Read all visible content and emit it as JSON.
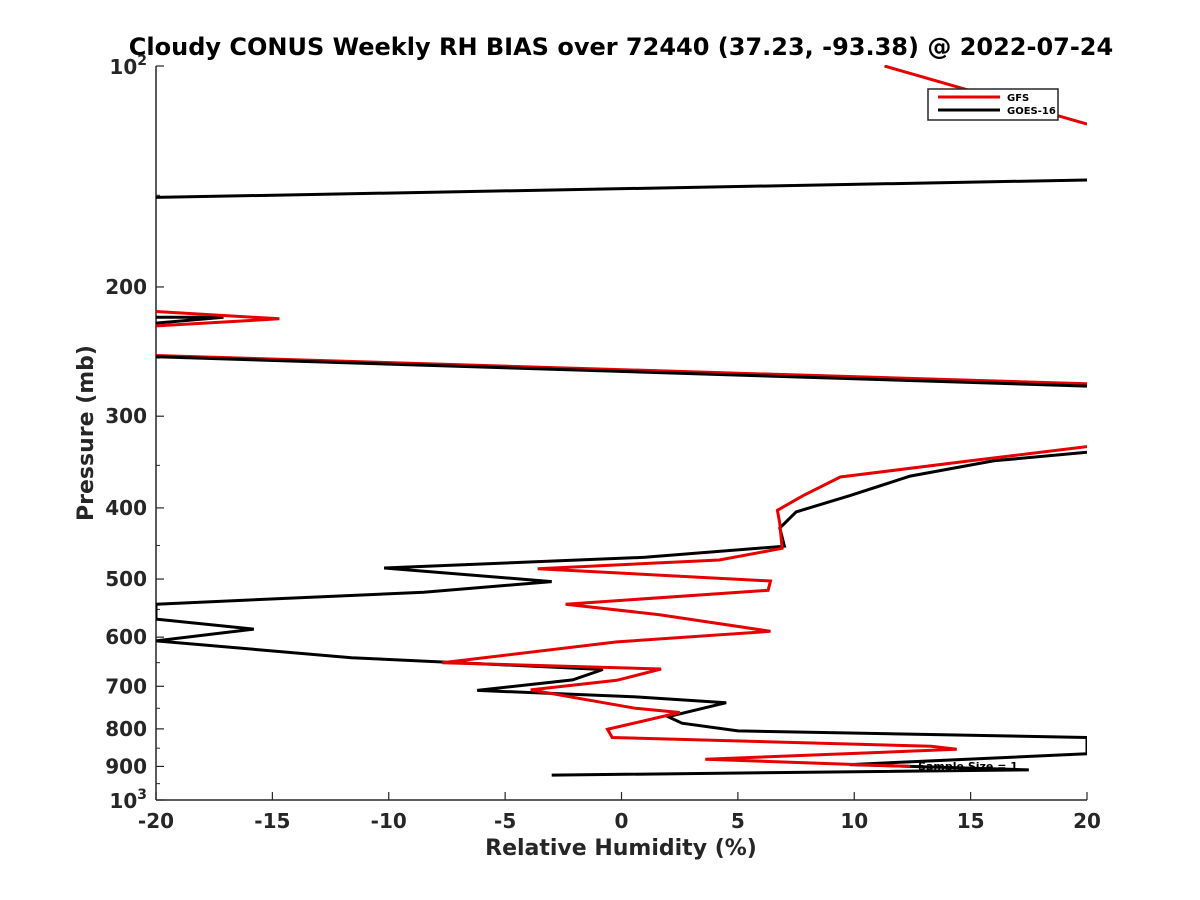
{
  "chart_data": {
    "type": "line",
    "title": "Cloudy CONUS Weekly RH BIAS over 72440 (37.23, -93.38) @ 2022-07-24",
    "xlabel": "Relative Humidity (%)",
    "ylabel": "Pressure (mb)",
    "xlim": [
      -20,
      20
    ],
    "ylim": [
      100,
      1000
    ],
    "y_scale": "log",
    "y_reversed": true,
    "grid": false,
    "legend_position": "top-right",
    "x_ticks": [
      "-20",
      "-15",
      "-10",
      "-5",
      "0",
      "5",
      "10",
      "15",
      "20"
    ],
    "y_ticks": [
      {
        "value": 200,
        "label": "200"
      },
      {
        "value": 300,
        "label": "300"
      },
      {
        "value": 400,
        "label": "400"
      },
      {
        "value": 500,
        "label": "500"
      },
      {
        "value": 600,
        "label": "600"
      },
      {
        "value": 700,
        "label": "700"
      },
      {
        "value": 800,
        "label": "800"
      },
      {
        "value": 900,
        "label": "900"
      }
    ],
    "y_decade_labels": [
      {
        "value": 100,
        "base": "10",
        "exp": "2"
      },
      {
        "value": 1000,
        "base": "10",
        "exp": "3"
      }
    ],
    "annotation": "Sample Size = 1",
    "series": [
      {
        "name": "GFS",
        "color": "#e60000",
        "points": [
          [
            12.4,
            900
          ],
          [
            3.6,
            880
          ],
          [
            14.4,
            853
          ],
          [
            13.3,
            845
          ],
          [
            -0.4,
            822
          ],
          [
            -0.6,
            801
          ],
          [
            2.5,
            760
          ],
          [
            0.6,
            750
          ],
          [
            -3.9,
            708
          ],
          [
            -0.2,
            687
          ],
          [
            1.7,
            663
          ],
          [
            -7.7,
            650
          ],
          [
            -0.2,
            609
          ],
          [
            6.4,
            589
          ],
          [
            1.6,
            559
          ],
          [
            -2.4,
            541
          ],
          [
            6.3,
            518
          ],
          [
            6.4,
            503
          ],
          [
            -3.6,
            484
          ],
          [
            4.2,
            471
          ],
          [
            6.9,
            454
          ],
          [
            6.8,
            420
          ],
          [
            6.7,
            403
          ],
          [
            7.8,
            385
          ],
          [
            9.4,
            363
          ],
          [
            15.0,
            345
          ],
          [
            20.0,
            330
          ]
        ]
      },
      {
        "name": "GOES-16",
        "color": "#000000",
        "points": [
          [
            -3.0,
            925
          ],
          [
            17.5,
            910
          ],
          [
            9.8,
            895
          ],
          [
            20.0,
            865
          ],
          [
            20.0,
            822
          ],
          [
            5.0,
            805
          ],
          [
            2.6,
            786
          ],
          [
            2.0,
            770
          ],
          [
            4.5,
            737
          ],
          [
            0.7,
            724
          ],
          [
            -6.2,
            709
          ],
          [
            -2.1,
            686
          ],
          [
            -0.8,
            664
          ],
          [
            -11.6,
            640
          ],
          [
            -20.0,
            607
          ],
          [
            -15.8,
            585
          ],
          [
            -20.0,
            567
          ],
          [
            -20.0,
            541
          ],
          [
            -8.5,
            521
          ],
          [
            -3.0,
            504
          ],
          [
            -10.2,
            483
          ],
          [
            1.0,
            467
          ],
          [
            7.0,
            451
          ],
          [
            6.8,
            426
          ],
          [
            7.5,
            405
          ],
          [
            9.8,
            385
          ],
          [
            12.4,
            362
          ],
          [
            16.0,
            345
          ],
          [
            20.0,
            336
          ]
        ]
      }
    ],
    "upper_segments": [
      {
        "name": "GFS",
        "color": "#e60000",
        "points": [
          [
            11.3,
            100
          ],
          [
            20.0,
            120
          ]
        ]
      },
      {
        "name": "GOES-16",
        "color": "#000000",
        "points": [
          [
            -20.0,
            151
          ],
          [
            20.0,
            143
          ]
        ]
      },
      {
        "name": "GOES-16",
        "color": "#000000",
        "points": [
          [
            -20.0,
            220
          ],
          [
            -17.1,
            220
          ],
          [
            -20.0,
            224
          ]
        ]
      },
      {
        "name": "GFS",
        "color": "#e60000",
        "points": [
          [
            -20.0,
            216
          ],
          [
            -14.7,
            221
          ],
          [
            -20.0,
            226
          ]
        ]
      },
      {
        "name": "GFS",
        "color": "#e60000",
        "points": [
          [
            -20.0,
            248
          ],
          [
            20.0,
            271
          ]
        ]
      },
      {
        "name": "GOES-16",
        "color": "#000000",
        "points": [
          [
            -20.0,
            249
          ],
          [
            20.0,
            273
          ]
        ]
      }
    ]
  }
}
